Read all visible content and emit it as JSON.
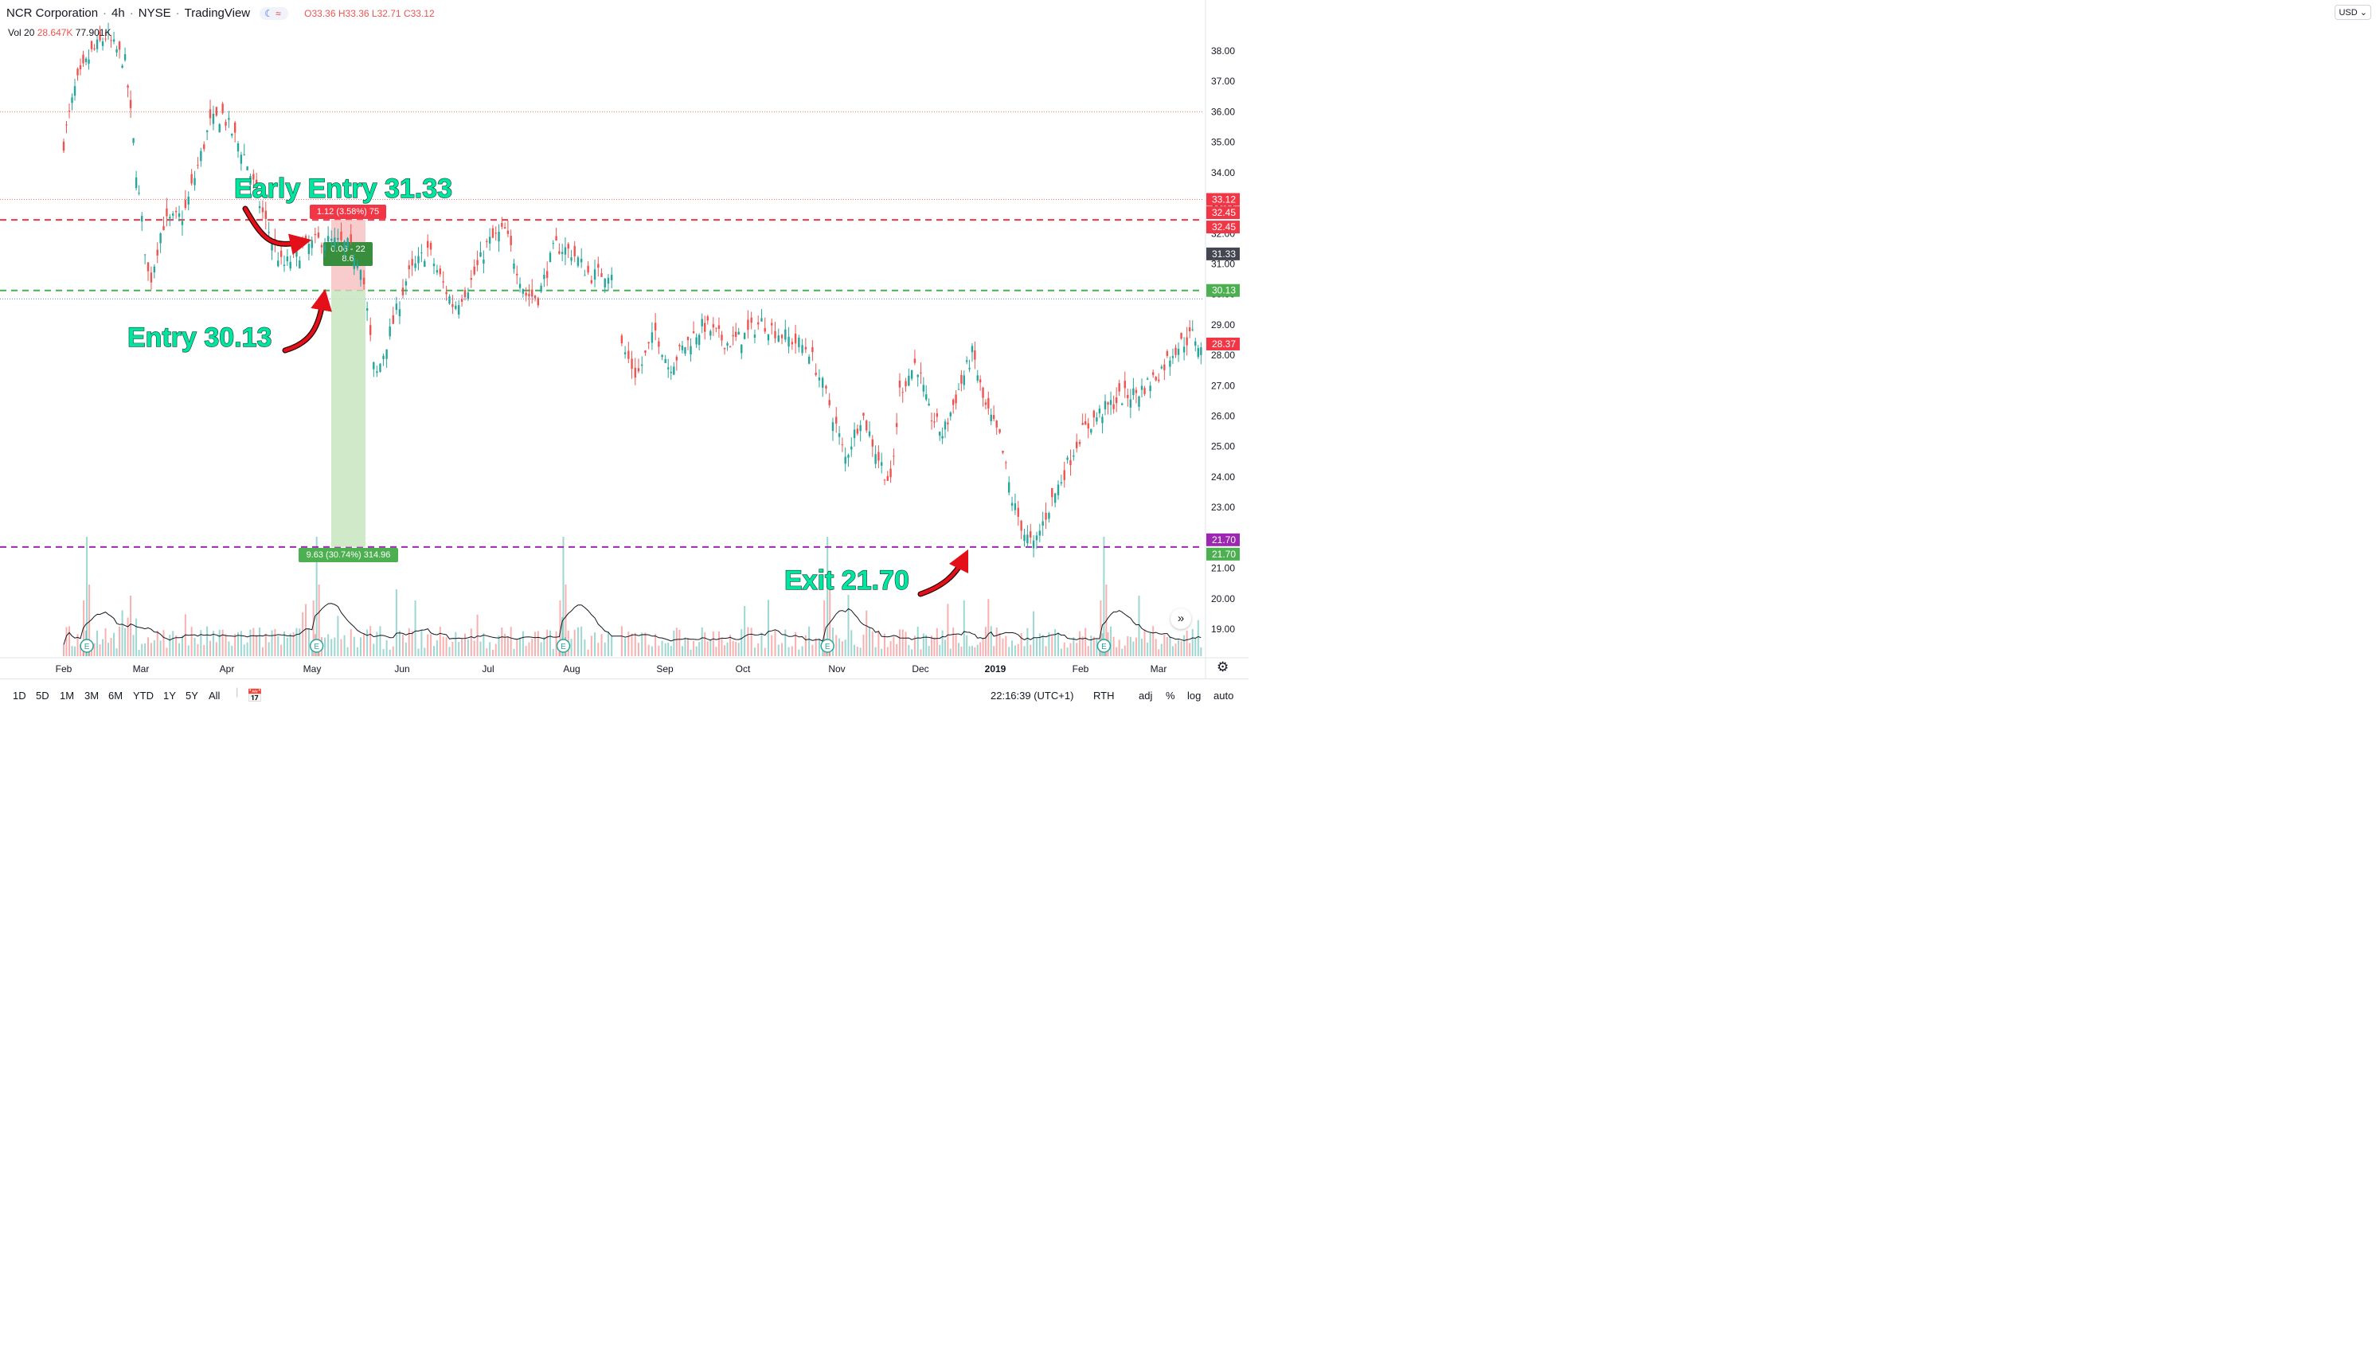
{
  "header": {
    "symbol": "NCR Corporation",
    "interval": "4h",
    "exchange": "NYSE",
    "source": "TradingView",
    "open": "O33.36",
    "high": "H33.36",
    "low": "L32.71",
    "close": "C33.12"
  },
  "volume_legend": {
    "label": "Vol 20",
    "value1": "28.647K",
    "value2": "77.901K"
  },
  "currency": "USD",
  "colors": {
    "up": "#26a69a",
    "down": "#ef5350",
    "target": "#f23645",
    "entry": "#4caf50",
    "exit": "#9c27b0",
    "annotation": "#00e6a0",
    "arrow": "#e3101a"
  },
  "annotations": {
    "early_entry": "Early Entry 31.33",
    "entry": "Entry 30.13",
    "exit": "Exit 21.70"
  },
  "position_tool": {
    "stop_label": "1.12 (3.58%) 75",
    "mid_label_1": "0.06 - 22",
    "mid_label_2": "8.6",
    "target_label": "9.63 (30.74%) 314.96"
  },
  "price_tags": [
    "33.12",
    "32.45",
    "32.45",
    "31.33",
    "30.13",
    "28.37",
    "21.70",
    "21.70"
  ],
  "timeframes": [
    "1D",
    "5D",
    "1M",
    "3M",
    "6M",
    "YTD",
    "1Y",
    "5Y",
    "All"
  ],
  "status": {
    "time": "22:16:39 (UTC+1)",
    "session": "RTH",
    "adj": "adj",
    "percent": "%",
    "log": "log",
    "auto": "auto"
  },
  "chart_data": {
    "type": "candlestick",
    "x_tick_labels": [
      "Feb",
      "Mar",
      "Apr",
      "May",
      "Jun",
      "Jul",
      "Aug",
      "Sep",
      "Oct",
      "Nov",
      "Dec",
      "2019",
      "Feb",
      "Mar"
    ],
    "y_tick_labels": [
      "38.00",
      "37.00",
      "36.00",
      "35.00",
      "34.00",
      "33.00",
      "32.00",
      "31.00",
      "30.00",
      "29.00",
      "28.00",
      "27.00",
      "26.00",
      "25.00",
      "24.00",
      "23.00",
      "22.00",
      "21.00",
      "20.00",
      "19.00"
    ],
    "ylim": [
      18.6,
      39.0
    ],
    "close_path": [
      {
        "m": 0,
        "p": 35.0
      },
      {
        "m": 0.15,
        "p": 36.8
      },
      {
        "m": 0.35,
        "p": 37.9
      },
      {
        "m": 0.55,
        "p": 38.5
      },
      {
        "m": 0.8,
        "p": 37.6
      },
      {
        "m": 0.95,
        "p": 33.8
      },
      {
        "m": 1.1,
        "p": 30.3
      },
      {
        "m": 1.25,
        "p": 32.3
      },
      {
        "m": 1.5,
        "p": 32.6
      },
      {
        "m": 1.8,
        "p": 35.6
      },
      {
        "m": 1.95,
        "p": 35.9
      },
      {
        "m": 2.2,
        "p": 34.6
      },
      {
        "m": 2.45,
        "p": 32.4
      },
      {
        "m": 2.65,
        "p": 30.9
      },
      {
        "m": 2.9,
        "p": 31.5
      },
      {
        "m": 3.1,
        "p": 31.8
      },
      {
        "m": 3.4,
        "p": 31.6
      },
      {
        "m": 3.55,
        "p": 31.0
      },
      {
        "m": 3.7,
        "p": 27.2
      },
      {
        "m": 3.85,
        "p": 28.6
      },
      {
        "m": 4.05,
        "p": 30.5
      },
      {
        "m": 4.3,
        "p": 31.5
      },
      {
        "m": 4.45,
        "p": 30.5
      },
      {
        "m": 4.6,
        "p": 29.6
      },
      {
        "m": 4.8,
        "p": 30.4
      },
      {
        "m": 5.0,
        "p": 31.7
      },
      {
        "m": 5.2,
        "p": 32.1
      },
      {
        "m": 5.45,
        "p": 30.0
      },
      {
        "m": 5.6,
        "p": 29.9
      },
      {
        "m": 5.8,
        "p": 31.6
      },
      {
        "m": 6.0,
        "p": 31.4
      },
      {
        "m": 6.2,
        "p": 30.6
      },
      {
        "m": 6.45,
        "p": 30.8
      },
      {
        "m": 6.52,
        "p": 28.4
      },
      {
        "m": 6.7,
        "p": 27.3
      },
      {
        "m": 6.9,
        "p": 28.8
      },
      {
        "m": 7.05,
        "p": 27.6
      },
      {
        "m": 7.25,
        "p": 28.3
      },
      {
        "m": 7.5,
        "p": 29.0
      },
      {
        "m": 7.8,
        "p": 28.4
      },
      {
        "m": 8.0,
        "p": 28.6
      },
      {
        "m": 8.2,
        "p": 29.1
      },
      {
        "m": 8.4,
        "p": 28.7
      },
      {
        "m": 8.7,
        "p": 28.2
      },
      {
        "m": 8.9,
        "p": 26.6
      },
      {
        "m": 9.1,
        "p": 24.6
      },
      {
        "m": 9.3,
        "p": 26.1
      },
      {
        "m": 9.5,
        "p": 24.6
      },
      {
        "m": 9.65,
        "p": 23.7
      },
      {
        "m": 9.75,
        "p": 26.8
      },
      {
        "m": 9.95,
        "p": 27.8
      },
      {
        "m": 10.1,
        "p": 26.2
      },
      {
        "m": 10.3,
        "p": 25.4
      },
      {
        "m": 10.5,
        "p": 26.8
      },
      {
        "m": 10.7,
        "p": 28.1
      },
      {
        "m": 10.85,
        "p": 26.4
      },
      {
        "m": 11.05,
        "p": 25.3
      },
      {
        "m": 11.2,
        "p": 23.2
      },
      {
        "m": 11.35,
        "p": 22.1
      },
      {
        "m": 11.45,
        "p": 21.7
      },
      {
        "m": 11.6,
        "p": 22.8
      },
      {
        "m": 11.8,
        "p": 24.1
      },
      {
        "m": 12.0,
        "p": 25.4
      },
      {
        "m": 12.25,
        "p": 26.1
      },
      {
        "m": 12.5,
        "p": 26.6
      },
      {
        "m": 12.75,
        "p": 26.8
      },
      {
        "m": 13.0,
        "p": 27.4
      },
      {
        "m": 13.2,
        "p": 28.2
      },
      {
        "m": 13.45,
        "p": 28.7
      },
      {
        "m": 13.6,
        "p": 27.8
      },
      {
        "m": 13.75,
        "p": 28.6
      },
      {
        "m": 13.9,
        "p": 28.2
      },
      {
        "m": 14.05,
        "p": 28.4
      }
    ],
    "levels": [
      {
        "name": "Target",
        "value": 32.45
      },
      {
        "name": "Early entry",
        "value": 31.33
      },
      {
        "name": "Entry",
        "value": 30.13
      },
      {
        "name": "Exit",
        "value": 21.7
      }
    ],
    "earnings_markers_month": [
      0.3,
      3.05,
      5.9,
      8.9,
      12.3
    ]
  }
}
